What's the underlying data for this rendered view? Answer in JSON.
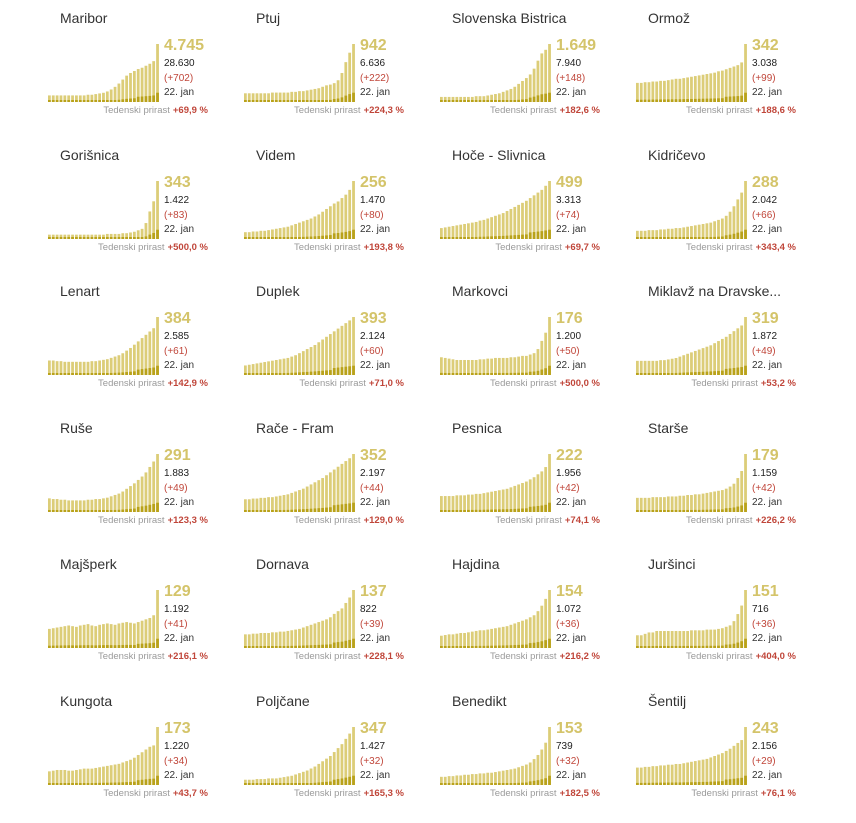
{
  "growth_label": "Tedenski prirast",
  "date_label": "22. jan",
  "colors": {
    "bar_light": "#dccd78",
    "bar_dark": "#b9a21a",
    "big_number": "#d4c46a",
    "delta": "#c0463a"
  },
  "chart_data": [
    {
      "type": "bar",
      "name": "Maribor",
      "value": "4.745",
      "total": "28.630",
      "delta": "(+702)",
      "growth": "+69,9 %",
      "values": [
        10,
        10,
        10,
        10,
        10,
        10,
        10,
        10,
        10,
        10,
        11,
        11,
        12,
        13,
        14,
        16,
        19,
        23,
        28,
        34,
        40,
        44,
        47,
        50,
        52,
        55,
        58,
        62,
        88
      ]
    },
    {
      "type": "bar",
      "name": "Ptuj",
      "value": "942",
      "total": "6.636",
      "delta": "(+222)",
      "growth": "+224,3 %",
      "values": [
        12,
        12,
        12,
        12,
        12,
        12,
        12,
        13,
        13,
        13,
        13,
        13,
        14,
        14,
        15,
        15,
        16,
        17,
        18,
        19,
        21,
        23,
        24,
        26,
        30,
        40,
        55,
        68,
        80
      ]
    },
    {
      "type": "bar",
      "name": "Slovenska Bistrica",
      "value": "1.649",
      "total": "7.940",
      "delta": "(+148)",
      "growth": "+182,6 %",
      "values": [
        7,
        7,
        7,
        7,
        7,
        7,
        7,
        7,
        7,
        8,
        8,
        8,
        9,
        10,
        11,
        12,
        14,
        16,
        18,
        21,
        25,
        29,
        33,
        38,
        46,
        57,
        67,
        72,
        80
      ]
    },
    {
      "type": "bar",
      "name": "Ormož",
      "value": "342",
      "total": "3.038",
      "delta": "(+99)",
      "growth": "+188,6 %",
      "values": [
        28,
        28,
        29,
        29,
        30,
        30,
        31,
        31,
        32,
        33,
        34,
        34,
        35,
        36,
        37,
        38,
        39,
        40,
        41,
        42,
        43,
        45,
        46,
        48,
        50,
        52,
        54,
        58,
        85
      ]
    },
    {
      "type": "bar",
      "name": "Gorišnica",
      "value": "343",
      "total": "1.422",
      "delta": "(+83)",
      "growth": "+500,0 %",
      "values": [
        6,
        6,
        6,
        6,
        6,
        6,
        6,
        6,
        6,
        6,
        6,
        6,
        6,
        6,
        6,
        7,
        7,
        7,
        7,
        8,
        8,
        9,
        10,
        12,
        14,
        22,
        38,
        52,
        80
      ]
    },
    {
      "type": "bar",
      "name": "Videm",
      "value": "256",
      "total": "1.470",
      "delta": "(+80)",
      "growth": "+193,8 %",
      "values": [
        10,
        10,
        11,
        11,
        12,
        12,
        13,
        14,
        15,
        16,
        17,
        18,
        20,
        22,
        24,
        26,
        28,
        30,
        33,
        36,
        40,
        44,
        48,
        52,
        55,
        60,
        65,
        72,
        85
      ]
    },
    {
      "type": "bar",
      "name": "Hoče - Slivnica",
      "value": "499",
      "total": "3.313",
      "delta": "(+74)",
      "growth": "+69,7 %",
      "values": [
        16,
        17,
        18,
        19,
        20,
        21,
        22,
        23,
        24,
        25,
        27,
        28,
        30,
        32,
        34,
        36,
        38,
        41,
        44,
        47,
        50,
        53,
        56,
        60,
        64,
        68,
        72,
        78,
        85
      ]
    },
    {
      "type": "bar",
      "name": "Kidričevo",
      "value": "288",
      "total": "2.042",
      "delta": "(+66)",
      "growth": "+343,4 %",
      "values": [
        12,
        12,
        12,
        13,
        13,
        13,
        14,
        14,
        15,
        15,
        16,
        16,
        17,
        18,
        19,
        20,
        21,
        22,
        23,
        24,
        26,
        28,
        30,
        34,
        40,
        48,
        58,
        68,
        85
      ]
    },
    {
      "type": "bar",
      "name": "Lenart",
      "value": "384",
      "total": "2.585",
      "delta": "(+61)",
      "growth": "+142,9 %",
      "values": [
        22,
        22,
        21,
        21,
        20,
        20,
        20,
        20,
        20,
        20,
        20,
        21,
        21,
        22,
        23,
        24,
        26,
        28,
        30,
        33,
        37,
        41,
        46,
        51,
        56,
        61,
        66,
        71,
        88
      ]
    },
    {
      "type": "bar",
      "name": "Duplek",
      "value": "393",
      "total": "2.124",
      "delta": "(+60)",
      "growth": "+71,0 %",
      "values": [
        14,
        15,
        16,
        17,
        18,
        19,
        20,
        21,
        22,
        23,
        24,
        25,
        27,
        29,
        32,
        35,
        38,
        41,
        44,
        48,
        52,
        56,
        60,
        64,
        68,
        72,
        76,
        80,
        85
      ]
    },
    {
      "type": "bar",
      "name": "Markovci",
      "value": "176",
      "total": "1.200",
      "delta": "(+50)",
      "growth": "+500,0 %",
      "values": [
        26,
        25,
        24,
        23,
        22,
        22,
        22,
        22,
        22,
        22,
        23,
        23,
        24,
        24,
        25,
        25,
        25,
        25,
        26,
        26,
        27,
        28,
        28,
        30,
        32,
        38,
        50,
        62,
        85
      ]
    },
    {
      "type": "bar",
      "name": "Miklavž na Dravske...",
      "value": "319",
      "total": "1.872",
      "delta": "(+49)",
      "growth": "+53,2 %",
      "values": [
        20,
        20,
        20,
        20,
        20,
        20,
        21,
        21,
        22,
        23,
        24,
        26,
        28,
        30,
        32,
        34,
        36,
        38,
        40,
        42,
        45,
        48,
        51,
        54,
        58,
        62,
        66,
        70,
        82
      ]
    },
    {
      "type": "bar",
      "name": "Ruše",
      "value": "291",
      "total": "1.883",
      "delta": "(+49)",
      "growth": "+123,3 %",
      "values": [
        20,
        19,
        19,
        18,
        18,
        17,
        17,
        17,
        17,
        17,
        18,
        18,
        19,
        19,
        20,
        21,
        23,
        25,
        27,
        30,
        34,
        38,
        42,
        47,
        52,
        58,
        66,
        74,
        85
      ]
    },
    {
      "type": "bar",
      "name": "Rače - Fram",
      "value": "352",
      "total": "2.197",
      "delta": "(+44)",
      "growth": "+129,0 %",
      "values": [
        18,
        18,
        19,
        19,
        20,
        20,
        21,
        21,
        22,
        23,
        24,
        25,
        27,
        29,
        31,
        33,
        36,
        39,
        42,
        45,
        48,
        52,
        56,
        60,
        64,
        68,
        72,
        76,
        82
      ]
    },
    {
      "type": "bar",
      "name": "Pesnica",
      "value": "222",
      "total": "1.956",
      "delta": "(+42)",
      "growth": "+74,1 %",
      "values": [
        22,
        22,
        22,
        22,
        23,
        23,
        23,
        24,
        24,
        25,
        25,
        26,
        27,
        28,
        29,
        30,
        31,
        32,
        34,
        36,
        38,
        40,
        42,
        45,
        48,
        52,
        56,
        62,
        80
      ]
    },
    {
      "type": "bar",
      "name": "Starše",
      "value": "179",
      "total": "1.159",
      "delta": "(+42)",
      "growth": "+226,2 %",
      "values": [
        20,
        20,
        20,
        20,
        21,
        21,
        21,
        21,
        22,
        22,
        22,
        23,
        23,
        24,
        24,
        25,
        25,
        26,
        27,
        28,
        29,
        30,
        31,
        33,
        36,
        40,
        48,
        58,
        82
      ]
    },
    {
      "type": "bar",
      "name": "Majšperk",
      "value": "129",
      "total": "1.192",
      "delta": "(+41)",
      "growth": "+216,1 %",
      "values": [
        28,
        29,
        30,
        31,
        32,
        33,
        32,
        31,
        33,
        34,
        35,
        33,
        32,
        34,
        35,
        36,
        35,
        34,
        36,
        37,
        38,
        37,
        36,
        38,
        40,
        42,
        44,
        48,
        85
      ]
    },
    {
      "type": "bar",
      "name": "Dornava",
      "value": "137",
      "total": "822",
      "delta": "(+39)",
      "growth": "+228,1 %",
      "values": [
        20,
        20,
        21,
        21,
        22,
        22,
        22,
        23,
        23,
        24,
        24,
        25,
        26,
        27,
        28,
        30,
        32,
        34,
        36,
        38,
        40,
        42,
        45,
        50,
        54,
        58,
        66,
        74,
        85
      ]
    },
    {
      "type": "bar",
      "name": "Hajdina",
      "value": "154",
      "total": "1.072",
      "delta": "(+36)",
      "growth": "+216,2 %",
      "values": [
        18,
        19,
        20,
        20,
        21,
        22,
        22,
        23,
        24,
        25,
        26,
        26,
        27,
        28,
        29,
        30,
        31,
        32,
        34,
        36,
        38,
        40,
        42,
        45,
        48,
        54,
        62,
        72,
        85
      ]
    },
    {
      "type": "bar",
      "name": "Juršinci",
      "value": "151",
      "total": "716",
      "delta": "(+36)",
      "growth": "+404,0 %",
      "values": [
        18,
        18,
        20,
        22,
        22,
        24,
        24,
        24,
        24,
        24,
        24,
        24,
        24,
        24,
        25,
        25,
        25,
        25,
        26,
        26,
        26,
        27,
        28,
        30,
        32,
        38,
        48,
        60,
        82
      ]
    },
    {
      "type": "bar",
      "name": "Kungota",
      "value": "173",
      "total": "1.220",
      "delta": "(+34)",
      "growth": "+43,7 %",
      "values": [
        20,
        21,
        22,
        22,
        22,
        21,
        21,
        22,
        23,
        24,
        24,
        24,
        25,
        26,
        27,
        28,
        29,
        30,
        31,
        33,
        35,
        37,
        40,
        44,
        48,
        52,
        56,
        58,
        85
      ]
    },
    {
      "type": "bar",
      "name": "Poljčane",
      "value": "347",
      "total": "1.427",
      "delta": "(+32)",
      "growth": "+165,3 %",
      "values": [
        8,
        8,
        8,
        9,
        9,
        9,
        10,
        10,
        10,
        11,
        12,
        13,
        14,
        16,
        18,
        20,
        22,
        25,
        28,
        32,
        36,
        40,
        44,
        50,
        56,
        62,
        70,
        78,
        88
      ]
    },
    {
      "type": "bar",
      "name": "Benedikt",
      "value": "153",
      "total": "739",
      "delta": "(+32)",
      "growth": "+182,5 %",
      "values": [
        12,
        12,
        13,
        13,
        14,
        14,
        15,
        15,
        16,
        16,
        17,
        17,
        18,
        18,
        19,
        20,
        21,
        22,
        23,
        24,
        26,
        28,
        30,
        33,
        38,
        44,
        52,
        62,
        85
      ]
    },
    {
      "type": "bar",
      "name": "Šentilj",
      "value": "243",
      "total": "2.156",
      "delta": "(+29)",
      "growth": "+76,1 %",
      "values": [
        24,
        24,
        25,
        25,
        26,
        26,
        27,
        27,
        28,
        28,
        29,
        29,
        30,
        31,
        32,
        33,
        34,
        35,
        36,
        38,
        40,
        42,
        44,
        47,
        50,
        54,
        58,
        62,
        80
      ]
    }
  ]
}
